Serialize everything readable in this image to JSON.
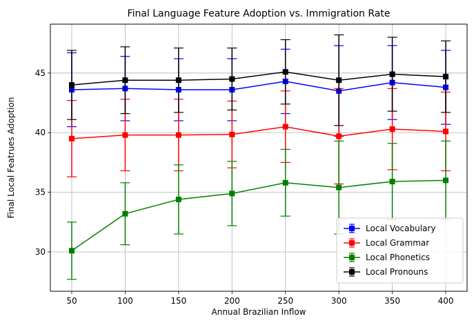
{
  "chart_data": {
    "type": "line",
    "title": "Final Language Feature Adoption vs. Immigration Rate",
    "xlabel": "Annual Brazilian Inflow",
    "ylabel": "Final Local Featrues Adoption",
    "x": [
      50,
      100,
      150,
      200,
      250,
      300,
      350,
      400
    ],
    "xticks": [
      50,
      100,
      150,
      200,
      250,
      300,
      350,
      400
    ],
    "yticks": [
      30,
      35,
      40,
      45
    ],
    "xlim": [
      30,
      420
    ],
    "ylim": [
      26.7,
      49.1
    ],
    "grid": true,
    "legend_position": "bottom-right",
    "series": [
      {
        "name": "Local Vocabulary",
        "color": "#0000ff",
        "values": [
          43.6,
          43.7,
          43.6,
          43.6,
          44.3,
          43.5,
          44.2,
          43.8
        ],
        "errors": [
          3.1,
          2.7,
          2.6,
          2.6,
          2.7,
          3.8,
          3.1,
          3.1
        ]
      },
      {
        "name": "Local Grammar",
        "color": "#ff0000",
        "values": [
          39.5,
          39.8,
          39.8,
          39.85,
          40.5,
          39.7,
          40.3,
          40.1
        ],
        "errors": [
          3.2,
          3.0,
          3.0,
          2.8,
          3.0,
          4.0,
          3.4,
          3.3
        ]
      },
      {
        "name": "Local Phonetics",
        "color": "#008000",
        "values": [
          30.1,
          33.2,
          34.4,
          34.9,
          35.8,
          35.4,
          35.9,
          36.0
        ],
        "errors": [
          2.4,
          2.6,
          2.9,
          2.7,
          2.8,
          3.9,
          3.2,
          3.3
        ]
      },
      {
        "name": "Local Pronouns",
        "color": "#000000",
        "values": [
          44.0,
          44.4,
          44.4,
          44.5,
          45.1,
          44.4,
          44.9,
          44.7
        ],
        "errors": [
          2.9,
          2.8,
          2.7,
          2.6,
          2.7,
          3.8,
          3.1,
          3.0
        ]
      }
    ]
  }
}
